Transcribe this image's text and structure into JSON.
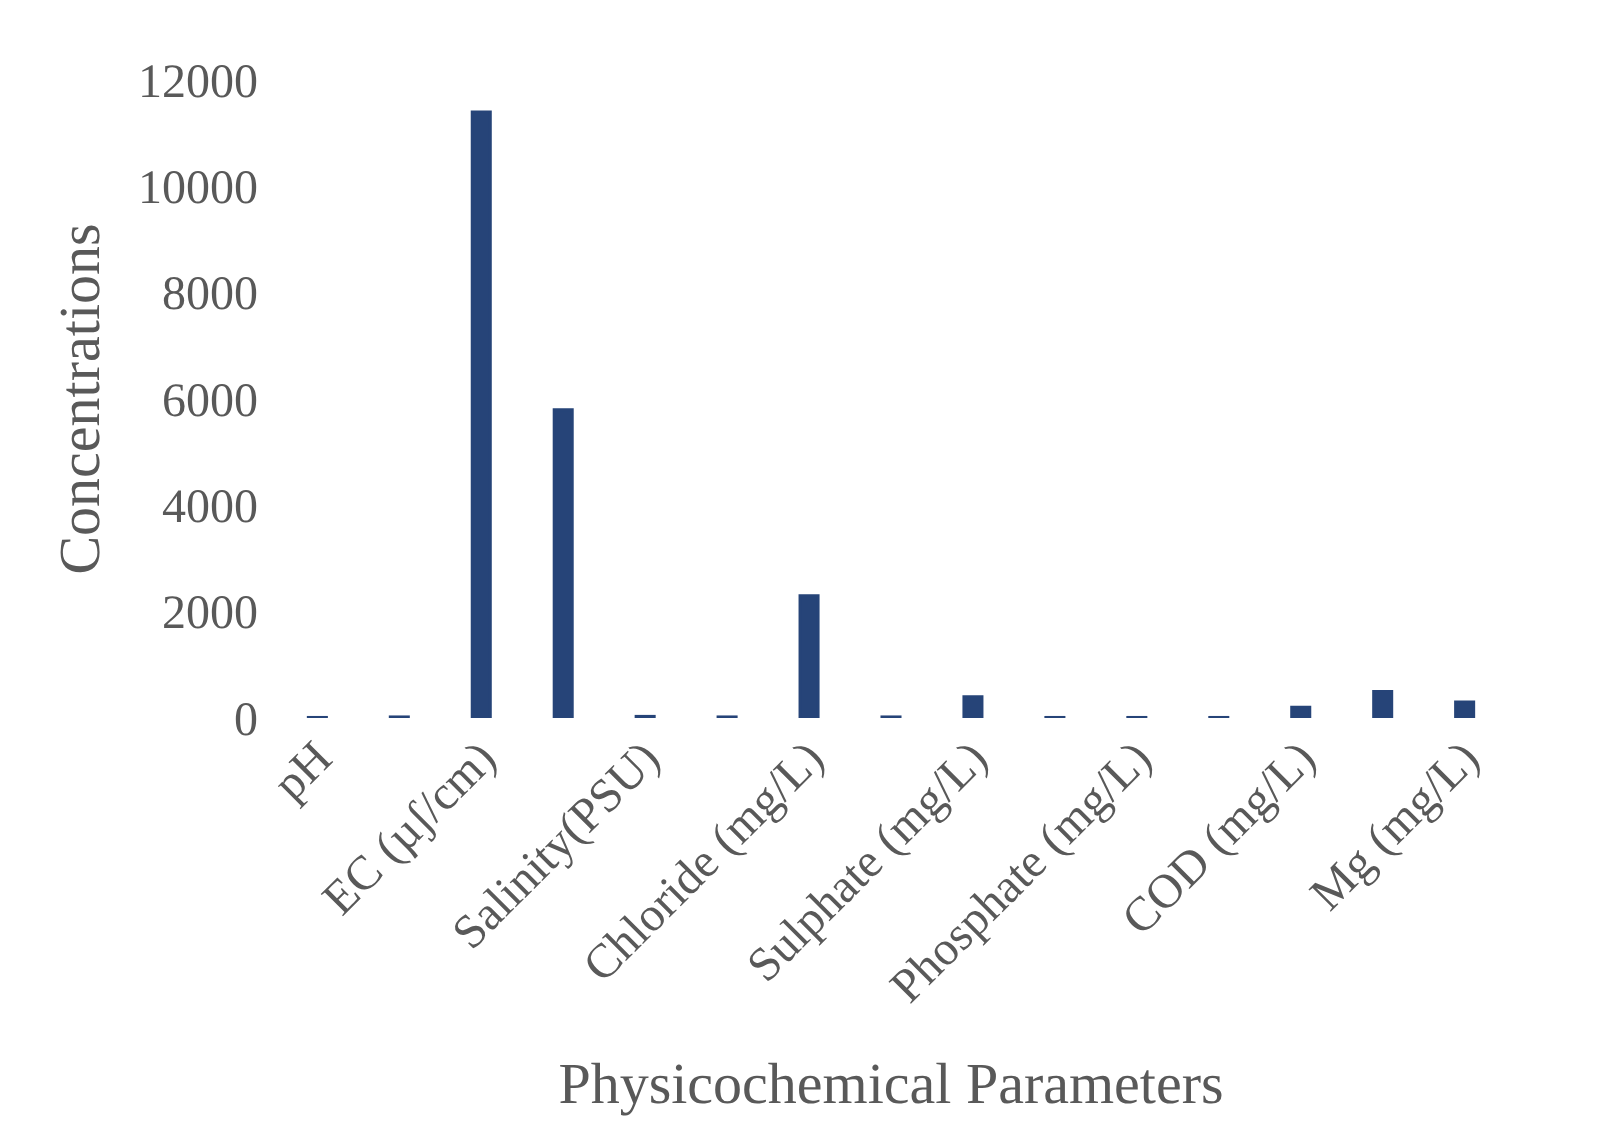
{
  "chart_data": {
    "type": "bar",
    "xlabel": "Physicochemical Parameters",
    "ylabel": "Concentrations",
    "categories": [
      "pH",
      null,
      "EC (µʃ/cm)",
      null,
      "Salinity(PSU)",
      null,
      "Chloride (mg/L)",
      null,
      "Sulphate (mg/L)",
      null,
      "Phosphate (mg/L)",
      null,
      "COD (mg/L)",
      null,
      "Mg (mg/L)"
    ],
    "values": [
      10,
      20,
      11400,
      5800,
      30,
      20,
      2300,
      20,
      400,
      10,
      10,
      10,
      200,
      500,
      300
    ],
    "color": "#264478",
    "ylim": [
      0,
      12000
    ],
    "yticks": [
      0,
      2000,
      4000,
      6000,
      8000,
      10000,
      12000
    ]
  }
}
